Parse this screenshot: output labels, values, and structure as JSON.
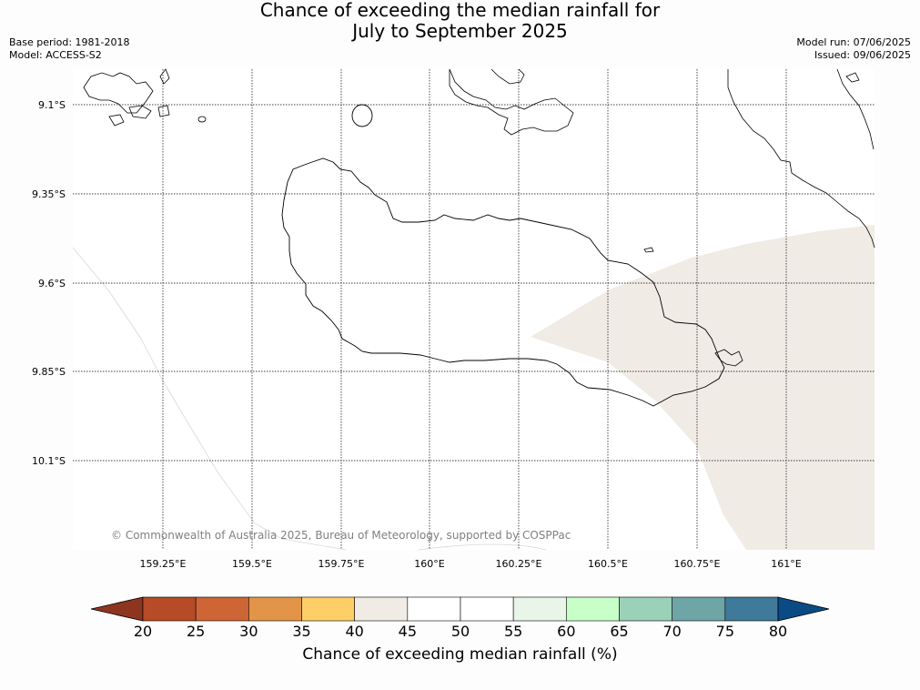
{
  "title": {
    "line1": "Chance of exceeding the median rainfall for",
    "line2": "July to September 2025"
  },
  "meta": {
    "base_period": "Base period: 1981-2018",
    "model": "Model: ACCESS-S2",
    "model_run": "Model run: 07/06/2025",
    "issued": "Issued: 09/06/2025"
  },
  "map": {
    "lat_labels": [
      "9.1°S",
      "9.35°S",
      "9.6°S",
      "9.85°S",
      "10.1°S"
    ],
    "lon_labels": [
      "159.25°E",
      "159.5°E",
      "159.75°E",
      "160°E",
      "160.25°E",
      "160.5°E",
      "160.75°E",
      "161°E"
    ],
    "copyright": "© Commonwealth of Australia 2025, Bureau of Meteorology, supported by COSPPac",
    "shaded_category": "40-45",
    "shaded_color": "#f0ebe5"
  },
  "colorbar": {
    "title": "Chance of exceeding median rainfall (%)",
    "ticks": [
      "20",
      "25",
      "30",
      "35",
      "40",
      "45",
      "50",
      "55",
      "60",
      "65",
      "70",
      "75",
      "80"
    ],
    "under_color": "#8e3520",
    "over_color": "#0a4a85",
    "colors": [
      "#b54b27",
      "#cd6535",
      "#e29548",
      "#fecf68",
      "#f0ebe5",
      "#ffffff",
      "#ffffff",
      "#e8f5e8",
      "#c8ffc8",
      "#9bd1b9",
      "#6ea5a6",
      "#3f7a9a"
    ]
  }
}
